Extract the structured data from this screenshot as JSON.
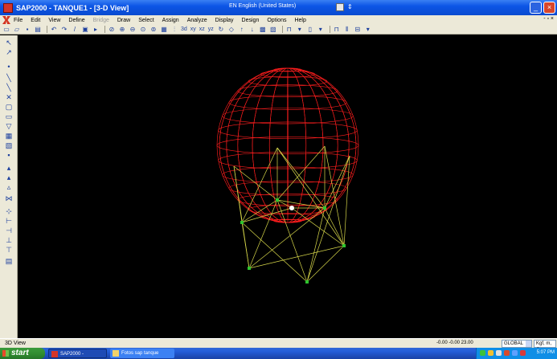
{
  "window": {
    "title": "SAP2000 - TANQUE1 - [3-D View]",
    "language": "EN English (United States)",
    "language_option": "⇕",
    "minimize_label": "_",
    "close_label": "×"
  },
  "menu": {
    "items": [
      {
        "label": "File",
        "enabled": true
      },
      {
        "label": "Edit",
        "enabled": true
      },
      {
        "label": "View",
        "enabled": true
      },
      {
        "label": "Define",
        "enabled": true
      },
      {
        "label": "Bridge",
        "enabled": false
      },
      {
        "label": "Draw",
        "enabled": true
      },
      {
        "label": "Select",
        "enabled": true
      },
      {
        "label": "Assign",
        "enabled": true
      },
      {
        "label": "Analyze",
        "enabled": true
      },
      {
        "label": "Display",
        "enabled": true
      },
      {
        "label": "Design",
        "enabled": true
      },
      {
        "label": "Options",
        "enabled": true
      },
      {
        "label": "Help",
        "enabled": true
      }
    ],
    "right_controls": "- ▫ ×"
  },
  "toolbar": {
    "view_buttons": [
      "3d",
      "xy",
      "xz",
      "yz"
    ]
  },
  "status": {
    "view_label": "3D View",
    "coordinates": "-0.00  -0.00  23.00",
    "coord_system": "GLOBAL",
    "units": "Kgf, m, C"
  },
  "taskbar": {
    "start_label": "start",
    "tasks": [
      {
        "label": "SAP2000 - TANQUE1 ..."
      },
      {
        "label": "Fotos sap tanque"
      }
    ],
    "clock": "5:07 PM"
  },
  "colors": {
    "sphere": "#ff1e1e",
    "frame": "#d8d84a",
    "joint": "#2ec42e",
    "background": "#000000"
  }
}
